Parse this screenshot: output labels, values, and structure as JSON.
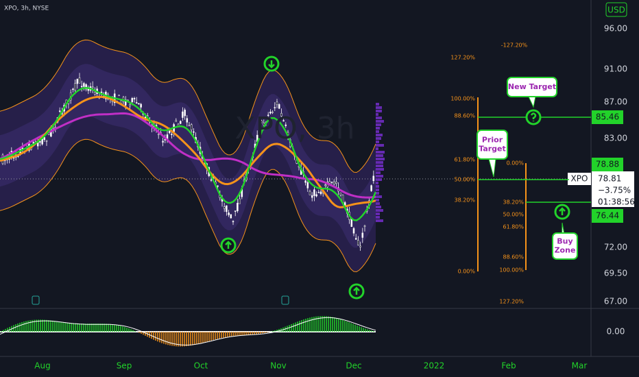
{
  "header": {
    "symbol": "XPO, 3h, NYSE",
    "currency": "USD"
  },
  "watermark": "XPO, 3h",
  "price_axis": [
    "96.00",
    "91.00",
    "87.00",
    "83.00",
    "72.00",
    "69.50",
    "67.00"
  ],
  "price_tags": [
    "85.46",
    "78.88",
    "76.44"
  ],
  "last_price": {
    "symbol": "XPO",
    "price": "78.81",
    "change": "−3.75%",
    "countdown": "01:38:56"
  },
  "oscillator_axis": "0.00",
  "time_axis": [
    "Aug",
    "Sep",
    "Oct",
    "Nov",
    "Dec",
    "2022",
    "Feb",
    "Mar"
  ],
  "fib_top": "-127.20%",
  "fib_left": [
    "127.20%",
    "100.00%",
    "88.60%",
    "61.80%",
    "50.00%",
    "38.20%",
    "0.00%"
  ],
  "fib_right": [
    "0.00%",
    "38.20%",
    "50.00%",
    "61.80%",
    "88.60%",
    "100.00%",
    "127.20%"
  ],
  "callouts": [
    {
      "lines": [
        "New Target"
      ]
    },
    {
      "lines": [
        "Prior",
        "Target"
      ]
    },
    {
      "lines": [
        "Buy",
        "Zone"
      ]
    }
  ]
}
